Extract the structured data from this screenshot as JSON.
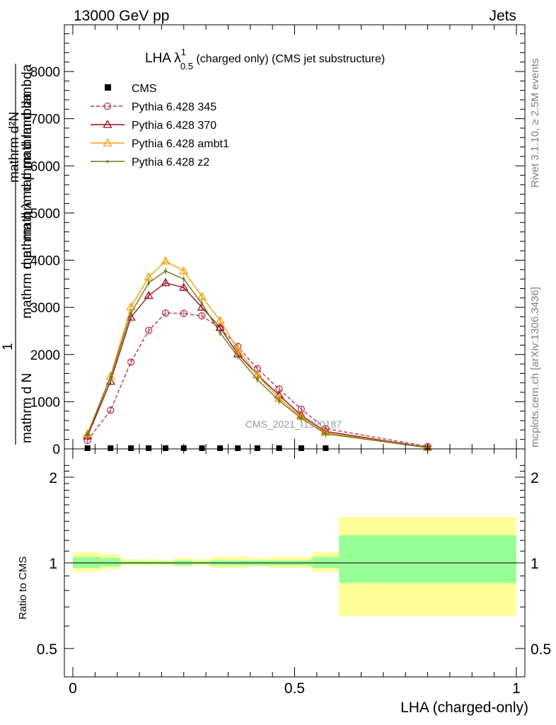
{
  "header": {
    "left": "13000 GeV pp",
    "right": "Jets"
  },
  "side_text": {
    "rivet": "Rivet 3.1.10, ≥ 2.5M events",
    "mcplots": "mcplots.cern.ch [arXiv:1306.3436]"
  },
  "chart_data": {
    "type": "line",
    "title_main": "LHA λ",
    "title_sup": "1",
    "title_sub": "0.5",
    "title_rest": " (charged only) (CMS jet substructure)",
    "watermark": "CMS_2021_I1920187",
    "xlabel": "LHA (charged-only)",
    "ylabel": {
      "numerator_top": "mathrm d²N",
      "numerator_bottom": "mathrm d p  mathrm d lambda",
      "one": "1",
      "denominator_left": "mathrm d N",
      "denominator_right": "mathrm d p",
      "denominator_mid": "mathrm d λ mathrm d lambda"
    },
    "ratio_ylabel": "Ratio to CMS",
    "xlim": [
      0,
      1
    ],
    "ylim": [
      0,
      9000
    ],
    "ratio_ylim": [
      0.4,
      2.3
    ],
    "x_ticks": [
      0,
      0.5,
      1
    ],
    "x_tick_labels": [
      "0",
      "0.5",
      "1"
    ],
    "y_ticks": [
      0,
      1000,
      2000,
      3000,
      4000,
      5000,
      6000,
      7000,
      8000
    ],
    "y_tick_labels": [
      "0",
      "1000",
      "2000",
      "3000",
      "4000",
      "5000",
      "6000",
      "7000",
      "8000"
    ],
    "ratio_ticks": [
      0.5,
      1,
      2
    ],
    "ratio_tick_labels": [
      "0.5",
      "1",
      "2"
    ],
    "x": [
      0.033,
      0.085,
      0.131,
      0.171,
      0.209,
      0.25,
      0.291,
      0.332,
      0.372,
      0.416,
      0.465,
      0.515,
      0.57,
      0.8
    ],
    "bin_edges": [
      0.0,
      0.062,
      0.108,
      0.152,
      0.19,
      0.229,
      0.27,
      0.311,
      0.352,
      0.393,
      0.44,
      0.49,
      0.54,
      0.6,
      1.0
    ],
    "cms": [
      15,
      15,
      15,
      15,
      15,
      15,
      15,
      15,
      15,
      15,
      15,
      15,
      15,
      15
    ],
    "series": [
      {
        "name": "Pythia 6.428 345",
        "color": "#b5364a",
        "dashed": true,
        "marker": "open-circle",
        "values": [
          180,
          820,
          1840,
          2510,
          2880,
          2870,
          2820,
          2560,
          2170,
          1700,
          1270,
          840,
          430,
          50
        ]
      },
      {
        "name": "Pythia 6.428 370",
        "color": "#9b0f27",
        "dashed": false,
        "marker": "open-triangle",
        "values": [
          270,
          1430,
          2790,
          3250,
          3520,
          3420,
          3000,
          2570,
          2010,
          1570,
          1140,
          710,
          370,
          30
        ]
      },
      {
        "name": "Pythia 6.428 ambt1",
        "color": "#f0a30a",
        "dashed": false,
        "marker": "open-triangle",
        "values": [
          320,
          1540,
          3010,
          3640,
          3980,
          3770,
          3230,
          2720,
          2110,
          1560,
          1070,
          680,
          340,
          25
        ]
      },
      {
        "name": "Pythia 6.428 z2",
        "color": "#6b7a12",
        "dashed": false,
        "marker": "dot",
        "values": [
          300,
          1520,
          2880,
          3520,
          3770,
          3600,
          3080,
          2460,
          1960,
          1470,
          1020,
          650,
          320,
          25
        ]
      }
    ],
    "ratio_band_outer": [
      [
        0.93,
        1.09
      ],
      [
        0.95,
        1.07
      ],
      [
        0.98,
        1.03
      ],
      [
        0.98,
        1.03
      ],
      [
        0.98,
        1.02
      ],
      [
        0.97,
        1.04
      ],
      [
        0.98,
        1.03
      ],
      [
        0.96,
        1.05
      ],
      [
        0.96,
        1.05
      ],
      [
        0.97,
        1.04
      ],
      [
        0.96,
        1.05
      ],
      [
        0.96,
        1.05
      ],
      [
        0.93,
        1.09
      ],
      [
        0.65,
        1.45
      ]
    ],
    "ratio_band_inner": [
      [
        0.96,
        1.05
      ],
      [
        0.97,
        1.04
      ],
      [
        0.99,
        1.01
      ],
      [
        0.99,
        1.01
      ],
      [
        0.99,
        1.01
      ],
      [
        0.98,
        1.02
      ],
      [
        0.99,
        1.01
      ],
      [
        0.98,
        1.02
      ],
      [
        0.98,
        1.02
      ],
      [
        0.98,
        1.02
      ],
      [
        0.98,
        1.02
      ],
      [
        0.98,
        1.02
      ],
      [
        0.96,
        1.05
      ],
      [
        0.85,
        1.25
      ]
    ],
    "colors": {
      "band_outer": "#ffff99",
      "band_inner": "#99ff99",
      "cms": "#000000"
    }
  }
}
